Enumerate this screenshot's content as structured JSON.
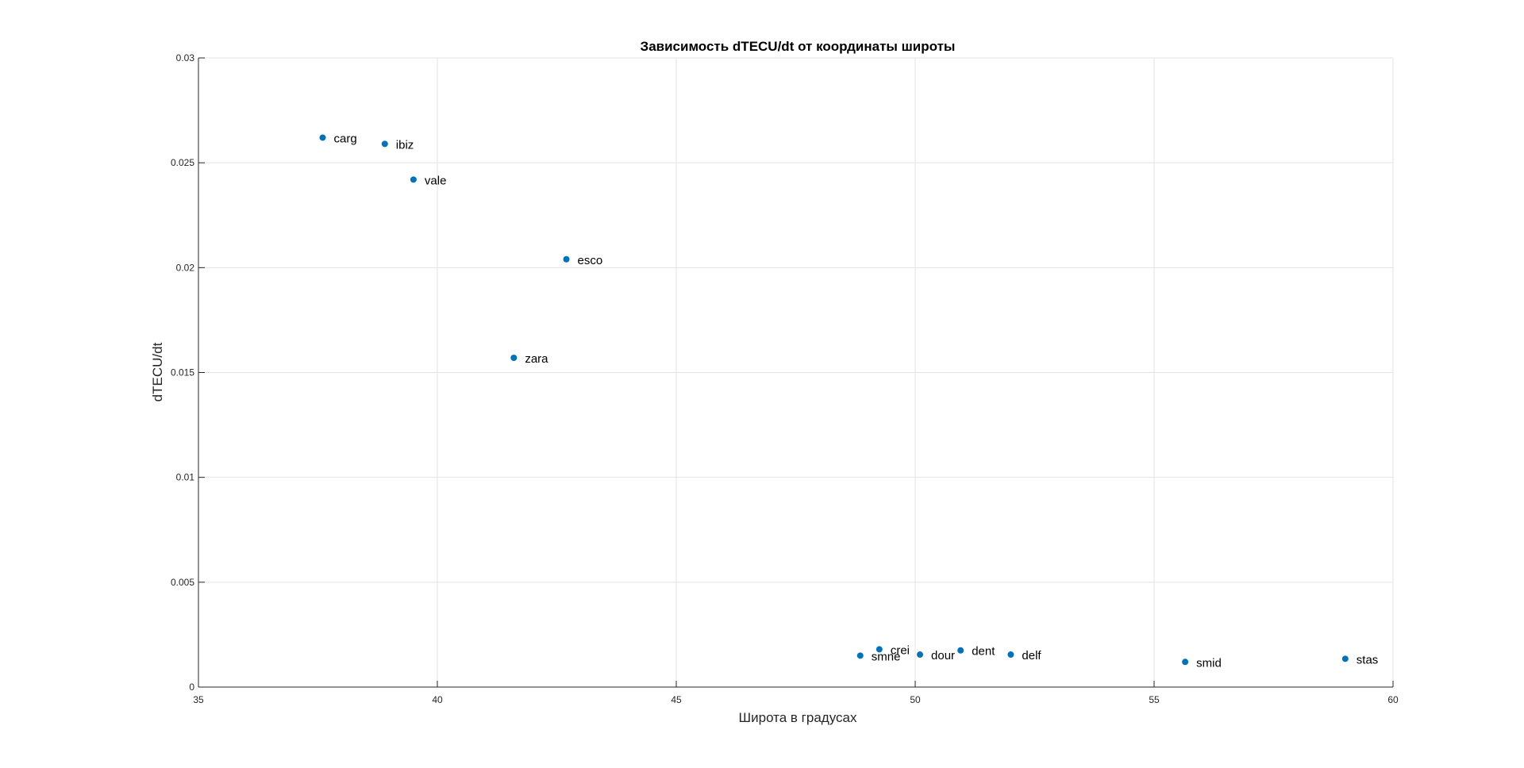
{
  "chart_data": {
    "type": "scatter",
    "title": "Зависимость dTECU/dt от координаты широты",
    "xlabel": "Широта в градусах",
    "ylabel": "dTECU/dt",
    "xlim": [
      35,
      60
    ],
    "ylim": [
      0,
      0.03
    ],
    "xticks": [
      35,
      40,
      45,
      50,
      55,
      60
    ],
    "xtick_labels": [
      "35",
      "40",
      "45",
      "50",
      "55",
      "60"
    ],
    "yticks": [
      0,
      0.005,
      0.01,
      0.015,
      0.02,
      0.025,
      0.03
    ],
    "ytick_labels": [
      "0",
      "0.005",
      "0.01",
      "0.015",
      "0.02",
      "0.025",
      "0.03"
    ],
    "grid": true,
    "marker_color": "#0072BD",
    "points": [
      {
        "label": "carg",
        "x": 37.6,
        "y": 0.0262
      },
      {
        "label": "ibiz",
        "x": 38.9,
        "y": 0.0259
      },
      {
        "label": "vale",
        "x": 39.5,
        "y": 0.0242
      },
      {
        "label": "esco",
        "x": 42.7,
        "y": 0.0204
      },
      {
        "label": "zara",
        "x": 41.6,
        "y": 0.0157
      },
      {
        "label": "smne",
        "x": 48.85,
        "y": 0.0015
      },
      {
        "label": "crei",
        "x": 49.25,
        "y": 0.0018
      },
      {
        "label": "dour",
        "x": 50.1,
        "y": 0.00155
      },
      {
        "label": "dent",
        "x": 50.95,
        "y": 0.00175
      },
      {
        "label": "delf",
        "x": 52.0,
        "y": 0.00155
      },
      {
        "label": "smid",
        "x": 55.65,
        "y": 0.0012
      },
      {
        "label": "stas",
        "x": 59.0,
        "y": 0.00135
      }
    ]
  }
}
